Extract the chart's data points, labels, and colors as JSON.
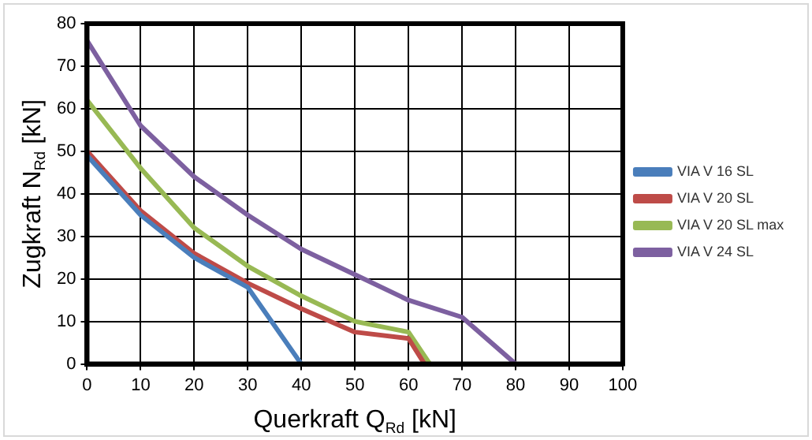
{
  "chart_data": {
    "type": "line",
    "xlabel": "Querkraft Q$_{Rd}$ [kN]",
    "ylabel": "Zugkraft N$_{Rd}$ [kN]",
    "xlim": [
      0,
      100
    ],
    "xticks": [
      0,
      10,
      20,
      30,
      40,
      50,
      60,
      70,
      80,
      90,
      100
    ],
    "ylim": [
      0,
      80
    ],
    "yticks": [
      0,
      10,
      20,
      30,
      40,
      50,
      60,
      70,
      80
    ],
    "grid": true,
    "legend": "right",
    "marker": "none",
    "line_style": "solid",
    "series": [
      {
        "name": "VIA V 16 SL",
        "color": "#4a7ebb",
        "x": [
          0,
          10,
          20,
          30,
          40
        ],
        "values": [
          49,
          35,
          25,
          18,
          0
        ]
      },
      {
        "name": "VIA V 20 SL",
        "color": "#be4b48",
        "x": [
          0,
          10,
          20,
          30,
          40,
          50,
          60,
          63
        ],
        "values": [
          50,
          36,
          26,
          19,
          13,
          7.5,
          6,
          0
        ]
      },
      {
        "name": "VIA V 20 SL max",
        "color": "#98b954",
        "x": [
          0,
          10,
          20,
          30,
          40,
          50,
          60,
          64
        ],
        "values": [
          62,
          46,
          32,
          23,
          16,
          10,
          7.5,
          0
        ]
      },
      {
        "name": "VIA V 24 SL",
        "color": "#7d60a0",
        "x": [
          0,
          10,
          20,
          30,
          40,
          50,
          60,
          70,
          80
        ],
        "values": [
          76,
          56,
          44,
          35,
          27,
          21,
          15,
          11,
          0
        ]
      }
    ]
  }
}
